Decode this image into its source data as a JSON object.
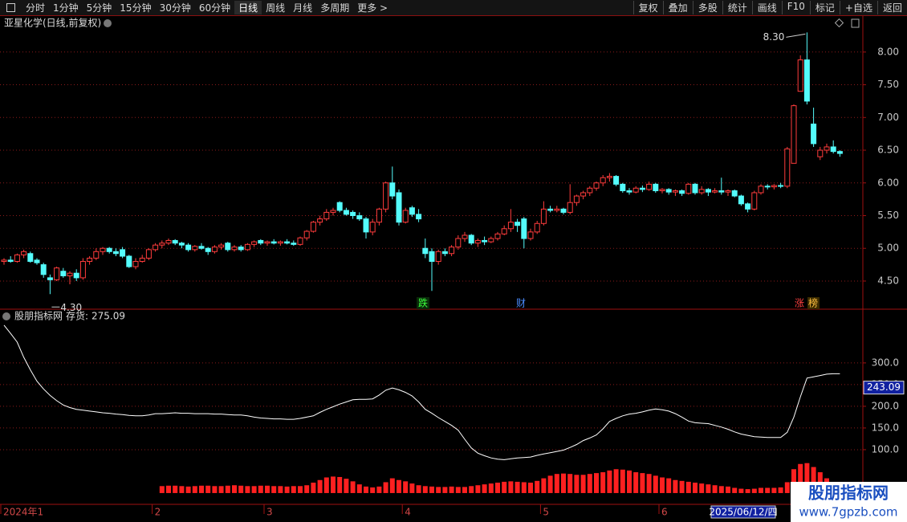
{
  "toolbar": {
    "left": [
      "分时",
      "1分钟",
      "5分钟",
      "15分钟",
      "30分钟",
      "60分钟",
      "日线",
      "周线",
      "月线",
      "多周期",
      "更多 >"
    ],
    "right": [
      "复权",
      "叠加",
      "多股",
      "统计",
      "画线",
      "F10",
      "标记",
      "+自选",
      "返回"
    ]
  },
  "chart_data": [
    {
      "type": "candlestick",
      "title": "亚星化学(日线,前复权)",
      "up_color": "#ff3c3c",
      "down_color": "#54fcfc",
      "grid": true,
      "ylim": [
        4.07,
        8.55
      ],
      "yticks": [
        {
          "value": 4.5,
          "label": "4.50"
        },
        {
          "value": 5,
          "label": "5.00"
        },
        {
          "value": 5.5,
          "label": "5.50"
        },
        {
          "value": 6,
          "label": "6.00"
        },
        {
          "value": 6.5,
          "label": "6.50"
        },
        {
          "value": 7,
          "label": "7.00"
        },
        {
          "value": 7.5,
          "label": "7.50"
        },
        {
          "value": 8,
          "label": "8.00"
        }
      ],
      "max_label": "8.30",
      "min_label": "4.30",
      "events": [
        "跌",
        "财",
        "涨",
        "榜"
      ],
      "candles": [
        [
          4.8,
          4.85,
          4.75,
          4.82
        ],
        [
          4.82,
          4.88,
          4.78,
          4.8
        ],
        [
          4.8,
          4.92,
          4.78,
          4.9
        ],
        [
          4.9,
          4.98,
          4.85,
          4.95
        ],
        [
          4.92,
          4.95,
          4.78,
          4.8
        ],
        [
          4.82,
          4.85,
          4.75,
          4.78
        ],
        [
          4.75,
          4.78,
          4.55,
          4.6
        ],
        [
          4.55,
          4.6,
          4.3,
          4.52
        ],
        [
          4.52,
          4.72,
          4.5,
          4.7
        ],
        [
          4.65,
          4.7,
          4.55,
          4.58
        ],
        [
          4.58,
          4.65,
          4.45,
          4.62
        ],
        [
          4.62,
          4.68,
          4.5,
          4.55
        ],
        [
          4.55,
          4.85,
          4.52,
          4.8
        ],
        [
          4.8,
          4.88,
          4.75,
          4.85
        ],
        [
          4.85,
          5.0,
          4.82,
          4.95
        ],
        [
          4.95,
          5.02,
          4.9,
          5.0
        ],
        [
          5.0,
          5.02,
          4.92,
          4.95
        ],
        [
          4.95,
          5.0,
          4.88,
          4.92
        ],
        [
          4.98,
          5.02,
          4.85,
          4.88
        ],
        [
          4.88,
          4.9,
          4.7,
          4.72
        ],
        [
          4.72,
          4.85,
          4.68,
          4.8
        ],
        [
          4.8,
          4.9,
          4.78,
          4.85
        ],
        [
          4.85,
          5.0,
          4.82,
          4.98
        ],
        [
          4.98,
          5.08,
          4.95,
          5.05
        ],
        [
          5.05,
          5.12,
          5.0,
          5.08
        ],
        [
          5.08,
          5.15,
          5.05,
          5.12
        ],
        [
          5.12,
          5.14,
          5.05,
          5.08
        ],
        [
          5.08,
          5.1,
          5.0,
          5.05
        ],
        [
          5.05,
          5.08,
          4.95,
          4.98
        ],
        [
          4.98,
          5.05,
          4.95,
          5.03
        ],
        [
          5.03,
          5.08,
          4.98,
          5.0
        ],
        [
          5.0,
          5.02,
          4.9,
          4.95
        ],
        [
          4.95,
          5.05,
          4.92,
          5.02
        ],
        [
          5.02,
          5.08,
          4.98,
          5.05
        ],
        [
          5.08,
          5.1,
          4.95,
          4.98
        ],
        [
          4.98,
          5.05,
          4.95,
          5.02
        ],
        [
          5.02,
          5.05,
          4.95,
          4.98
        ],
        [
          4.98,
          5.08,
          4.96,
          5.06
        ],
        [
          5.06,
          5.12,
          5.02,
          5.1
        ],
        [
          5.12,
          5.14,
          5.05,
          5.08
        ],
        [
          5.08,
          5.12,
          5.04,
          5.1
        ],
        [
          5.1,
          5.14,
          5.06,
          5.08
        ],
        [
          5.08,
          5.12,
          5.04,
          5.1
        ],
        [
          5.1,
          5.14,
          5.06,
          5.08
        ],
        [
          5.08,
          5.12,
          5.04,
          5.06
        ],
        [
          5.06,
          5.18,
          5.04,
          5.16
        ],
        [
          5.16,
          5.28,
          5.12,
          5.26
        ],
        [
          5.26,
          5.42,
          5.24,
          5.4
        ],
        [
          5.4,
          5.5,
          5.35,
          5.45
        ],
        [
          5.45,
          5.6,
          5.42,
          5.55
        ],
        [
          5.55,
          5.62,
          5.5,
          5.58
        ],
        [
          5.7,
          5.72,
          5.55,
          5.58
        ],
        [
          5.58,
          5.62,
          5.5,
          5.52
        ],
        [
          5.55,
          5.58,
          5.45,
          5.5
        ],
        [
          5.5,
          5.55,
          5.42,
          5.45
        ],
        [
          5.45,
          5.48,
          5.15,
          5.25
        ],
        [
          5.25,
          5.45,
          5.2,
          5.4
        ],
        [
          5.4,
          5.62,
          5.35,
          5.6
        ],
        [
          5.6,
          6.02,
          5.55,
          6.0
        ],
        [
          6.0,
          6.25,
          5.75,
          5.8
        ],
        [
          5.85,
          5.9,
          5.35,
          5.4
        ],
        [
          5.4,
          5.62,
          5.38,
          5.58
        ],
        [
          5.62,
          5.65,
          5.48,
          5.52
        ],
        [
          5.52,
          5.6,
          5.4,
          5.45
        ],
        [
          5.0,
          5.15,
          4.85,
          4.92
        ],
        [
          4.95,
          5.0,
          4.35,
          4.8
        ],
        [
          4.8,
          4.98,
          4.75,
          4.95
        ],
        [
          4.95,
          5.0,
          4.88,
          4.92
        ],
        [
          4.92,
          5.05,
          4.88,
          5.02
        ],
        [
          5.02,
          5.2,
          4.98,
          5.15
        ],
        [
          5.15,
          5.25,
          5.1,
          5.2
        ],
        [
          5.2,
          5.22,
          5.05,
          5.08
        ],
        [
          5.08,
          5.15,
          5.02,
          5.12
        ],
        [
          5.12,
          5.18,
          5.05,
          5.1
        ],
        [
          5.1,
          5.18,
          5.08,
          5.15
        ],
        [
          5.15,
          5.25,
          5.12,
          5.22
        ],
        [
          5.22,
          5.35,
          5.2,
          5.3
        ],
        [
          5.3,
          5.6,
          5.25,
          5.4
        ],
        [
          5.4,
          5.45,
          5.25,
          5.35
        ],
        [
          5.45,
          5.48,
          5.0,
          5.15
        ],
        [
          5.15,
          5.3,
          5.12,
          5.25
        ],
        [
          5.25,
          5.42,
          5.22,
          5.38
        ],
        [
          5.38,
          5.72,
          5.35,
          5.6
        ],
        [
          5.6,
          5.65,
          5.55,
          5.58
        ],
        [
          5.58,
          5.65,
          5.55,
          5.6
        ],
        [
          5.6,
          5.62,
          5.52,
          5.55
        ],
        [
          5.55,
          5.98,
          5.52,
          5.7
        ],
        [
          5.7,
          5.82,
          5.65,
          5.8
        ],
        [
          5.8,
          5.88,
          5.75,
          5.85
        ],
        [
          5.85,
          5.95,
          5.8,
          5.92
        ],
        [
          5.92,
          6.02,
          5.88,
          6.0
        ],
        [
          6.0,
          6.12,
          5.95,
          6.08
        ],
        [
          6.08,
          6.15,
          6.02,
          6.1
        ],
        [
          6.1,
          6.12,
          5.95,
          5.98
        ],
        [
          5.98,
          6.0,
          5.85,
          5.88
        ],
        [
          5.88,
          5.92,
          5.82,
          5.86
        ],
        [
          5.86,
          5.95,
          5.84,
          5.92
        ],
        [
          5.92,
          5.96,
          5.86,
          5.9
        ],
        [
          5.9,
          6.02,
          5.88,
          5.98
        ],
        [
          5.98,
          6.0,
          5.85,
          5.88
        ],
        [
          5.88,
          5.92,
          5.84,
          5.9
        ],
        [
          5.9,
          5.92,
          5.82,
          5.86
        ],
        [
          5.86,
          5.9,
          5.8,
          5.88
        ],
        [
          5.88,
          5.9,
          5.8,
          5.84
        ],
        [
          5.84,
          6.0,
          5.82,
          5.98
        ],
        [
          5.98,
          6.0,
          5.82,
          5.85
        ],
        [
          5.85,
          5.95,
          5.82,
          5.9
        ],
        [
          5.9,
          5.92,
          5.8,
          5.86
        ],
        [
          5.86,
          5.92,
          5.84,
          5.88
        ],
        [
          5.88,
          6.08,
          5.82,
          5.86
        ],
        [
          5.86,
          5.9,
          5.8,
          5.88
        ],
        [
          5.88,
          5.9,
          5.78,
          5.8
        ],
        [
          5.8,
          5.82,
          5.65,
          5.68
        ],
        [
          5.68,
          5.7,
          5.55,
          5.6
        ],
        [
          5.6,
          5.88,
          5.58,
          5.85
        ],
        [
          5.85,
          5.98,
          5.82,
          5.95
        ],
        [
          5.95,
          5.98,
          5.9,
          5.94
        ],
        [
          5.94,
          5.98,
          5.9,
          5.96
        ],
        [
          5.96,
          6.0,
          5.92,
          5.95
        ],
        [
          5.95,
          6.55,
          5.92,
          6.52
        ],
        [
          6.3,
          7.2,
          6.3,
          7.18
        ],
        [
          7.4,
          7.95,
          7.4,
          7.88
        ],
        [
          7.88,
          8.3,
          7.2,
          7.25
        ],
        [
          6.9,
          7.15,
          6.55,
          6.6
        ],
        [
          6.4,
          6.55,
          6.35,
          6.5
        ],
        [
          6.5,
          6.6,
          6.45,
          6.55
        ],
        [
          6.55,
          6.65,
          6.45,
          6.48
        ],
        [
          6.48,
          6.5,
          6.4,
          6.45
        ]
      ]
    },
    {
      "type": "line",
      "title": "股朋指标网",
      "grid": true,
      "ylim": [
        -26,
        422
      ],
      "yticks": [
        {
          "value": 100,
          "label": "100.0"
        },
        {
          "value": 150,
          "label": "150.0"
        },
        {
          "value": 200,
          "label": "200.0"
        },
        {
          "value": 250,
          "label": "250.0"
        },
        {
          "value": 300,
          "label": "300.0"
        }
      ],
      "cursor_value": 243.09,
      "cursor_date": "2025/06/12/四",
      "categories": [
        "2024年1",
        null,
        null,
        null,
        null,
        null,
        null,
        null,
        null,
        null,
        null,
        null,
        null,
        null,
        null,
        null,
        null,
        null,
        null,
        null,
        null,
        null,
        null,
        "2",
        null,
        null,
        null,
        null,
        null,
        null,
        null,
        null,
        null,
        null,
        null,
        null,
        null,
        null,
        null,
        null,
        "3",
        null,
        null,
        null,
        null,
        null,
        null,
        null,
        null,
        null,
        null,
        null,
        null,
        null,
        null,
        null,
        null,
        null,
        null,
        null,
        null,
        "4",
        null,
        null,
        null,
        null,
        null,
        null,
        null,
        null,
        null,
        null,
        null,
        null,
        null,
        null,
        null,
        null,
        null,
        null,
        null,
        null,
        "5",
        null,
        null,
        null,
        null,
        null,
        null,
        null,
        null,
        null,
        null,
        null,
        null,
        null,
        null,
        null,
        null,
        null,
        "6",
        null,
        null,
        null,
        null,
        null,
        null,
        null,
        null,
        null,
        null,
        null,
        null,
        null,
        null,
        null,
        null,
        null,
        null,
        null,
        null,
        null,
        null,
        null,
        null,
        null,
        null,
        null
      ],
      "series": [
        {
          "name": "存货:",
          "color": "#ffffff",
          "kind": "line",
          "values": [
            387,
            368,
            348,
            313,
            284,
            258,
            240,
            225,
            213,
            203,
            197,
            193,
            191,
            189,
            187,
            185,
            184,
            182,
            181,
            179,
            178,
            178,
            180,
            183,
            183,
            184,
            185,
            184,
            184,
            183,
            183,
            183,
            182,
            182,
            181,
            180,
            180,
            178,
            175,
            173,
            172,
            171,
            171,
            170,
            170,
            172,
            175,
            178,
            186,
            193,
            199,
            205,
            210,
            215,
            216,
            216,
            217,
            226,
            237,
            242,
            238,
            232,
            224,
            210,
            193,
            184,
            174,
            165,
            156,
            145,
            124,
            104,
            92,
            86,
            81,
            78,
            77,
            79,
            81,
            82,
            83,
            87,
            90,
            93,
            96,
            99,
            105,
            112,
            121,
            127,
            134,
            148,
            165,
            172,
            178,
            182,
            184,
            187,
            191,
            194,
            192,
            189,
            183,
            175,
            166,
            162,
            161,
            160,
            156,
            152,
            147,
            141,
            136,
            133,
            130,
            129,
            128,
            128,
            128,
            140,
            175,
            222,
            265,
            268,
            271,
            274,
            275,
            275.09
          ]
        },
        {
          "color": "#ff2020",
          "kind": "bar",
          "values": [
            null,
            null,
            null,
            null,
            null,
            null,
            null,
            null,
            null,
            null,
            null,
            null,
            null,
            null,
            null,
            null,
            null,
            null,
            null,
            null,
            null,
            null,
            null,
            null,
            16,
            17,
            17,
            16,
            15,
            16,
            17,
            17,
            16,
            16,
            17,
            18,
            17,
            16,
            16,
            17,
            17,
            16,
            16,
            15,
            16,
            16,
            18,
            24,
            30,
            36,
            38,
            37,
            33,
            27,
            20,
            15,
            13,
            15,
            25,
            34,
            30,
            27,
            22,
            18,
            16,
            15,
            14,
            14,
            15,
            14,
            14,
            16,
            18,
            20,
            22,
            24,
            26,
            27,
            26,
            25,
            24,
            28,
            34,
            40,
            44,
            45,
            44,
            42,
            42,
            44,
            46,
            48,
            52,
            55,
            54,
            52,
            48,
            46,
            44,
            40,
            36,
            34,
            30,
            28,
            26,
            24,
            22,
            20,
            18,
            16,
            15,
            12,
            10,
            9,
            10,
            12,
            12,
            12,
            13,
            25,
            55,
            67,
            69,
            60,
            48,
            34,
            22,
            12
          ]
        }
      ]
    }
  ],
  "watermark": {
    "title": "股朋指标网",
    "url": "www.7gpzb.com"
  }
}
